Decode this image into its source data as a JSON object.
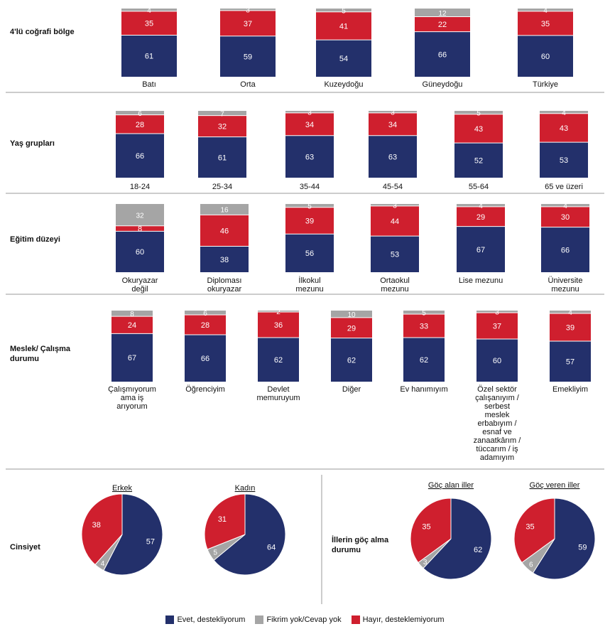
{
  "colors": {
    "evet": "#23306b",
    "fikir": "#a5a5a5",
    "hayir": "#cf1f2e",
    "line": "#9a9a9a"
  },
  "legend": {
    "evet": "Evet, destekliyorum",
    "fikir": "Fikrim yok/Cevap yok",
    "hayir": "Hayır, desteklemiyorum"
  },
  "chart_data": [
    {
      "type": "bar",
      "stacked": true,
      "title": "4'lü coğrafi bölge",
      "categories": [
        "Batı",
        "Orta",
        "Kuzeydoğu",
        "Güneydoğu",
        "Türkiye"
      ],
      "series": [
        {
          "name": "Evet, destekliyorum",
          "key": "evet",
          "values": [
            61,
            59,
            54,
            66,
            60
          ]
        },
        {
          "name": "Hayır, desteklemiyorum",
          "key": "hayir",
          "values": [
            35,
            37,
            41,
            22,
            35
          ]
        },
        {
          "name": "Fikrim yok/Cevap yok",
          "key": "fikir",
          "values": [
            4,
            3,
            5,
            12,
            4
          ]
        }
      ],
      "ylim": [
        0,
        100
      ]
    },
    {
      "type": "bar",
      "stacked": true,
      "title": "Yaş grupları",
      "categories": [
        "18-24",
        "25-34",
        "35-44",
        "45-54",
        "55-64",
        "65 ve üzeri"
      ],
      "series": [
        {
          "name": "Evet, destekliyorum",
          "key": "evet",
          "values": [
            66,
            61,
            63,
            63,
            52,
            53
          ]
        },
        {
          "name": "Hayır, desteklemiyorum",
          "key": "hayir",
          "values": [
            28,
            32,
            34,
            34,
            43,
            43
          ]
        },
        {
          "name": "Fikrim yok/Cevap yok",
          "key": "fikir",
          "values": [
            6,
            7,
            3,
            3,
            5,
            4
          ]
        }
      ],
      "ylim": [
        0,
        100
      ]
    },
    {
      "type": "bar",
      "stacked": true,
      "title": "Eğitim düzeyi",
      "categories": [
        "Okuryazar değil",
        "Diploması okuryazar",
        "İlkokul mezunu",
        "Ortaokul mezunu",
        "Lise mezunu",
        "Üniversite mezunu"
      ],
      "series": [
        {
          "name": "Evet, destekliyorum",
          "key": "evet",
          "values": [
            60,
            38,
            56,
            53,
            67,
            66
          ]
        },
        {
          "name": "Hayır, desteklemiyorum",
          "key": "hayir",
          "values": [
            8,
            46,
            39,
            44,
            29,
            30
          ]
        },
        {
          "name": "Fikrim yok/Cevap yok",
          "key": "fikir",
          "values": [
            32,
            16,
            5,
            3,
            4,
            4
          ]
        }
      ],
      "ylim": [
        0,
        100
      ]
    },
    {
      "type": "bar",
      "stacked": true,
      "title": "Meslek/ Çalışma durumu",
      "categories": [
        "Çalışmıyorum ama iş arıyorum",
        "Öğrenciyim",
        "Devlet memuruyum",
        "Diğer",
        "Ev hanımıyım",
        "Özel sektör çalışanıyım / serbest meslek erbabıyım / esnaf ve zanaatkârım / tüccarım / iş adamıyım",
        "Emekliyim"
      ],
      "series": [
        {
          "name": "Evet, destekliyorum",
          "key": "evet",
          "values": [
            67,
            66,
            62,
            62,
            62,
            60,
            57
          ]
        },
        {
          "name": "Hayır, desteklemiyorum",
          "key": "hayir",
          "values": [
            24,
            28,
            36,
            29,
            33,
            37,
            39
          ]
        },
        {
          "name": "Fikrim yok/Cevap yok",
          "key": "fikir",
          "values": [
            8,
            6,
            2,
            10,
            5,
            3,
            4
          ]
        }
      ],
      "ylim": [
        0,
        100
      ]
    },
    {
      "type": "pie",
      "title": "Cinsiyet",
      "pies": [
        {
          "label": "Erkek",
          "values": {
            "evet": 57,
            "fikir": 4,
            "hayir": 38
          }
        },
        {
          "label": "Kadın",
          "values": {
            "evet": 64,
            "fikir": 5,
            "hayir": 31
          }
        }
      ]
    },
    {
      "type": "pie",
      "title": "İllerin göç alma durumu",
      "pies": [
        {
          "label": "Göç alan iller",
          "values": {
            "evet": 62,
            "fikir": 3,
            "hayir": 35
          }
        },
        {
          "label": "Göç veren iller",
          "values": {
            "evet": 59,
            "fikir": 6,
            "hayir": 35
          }
        }
      ]
    }
  ]
}
